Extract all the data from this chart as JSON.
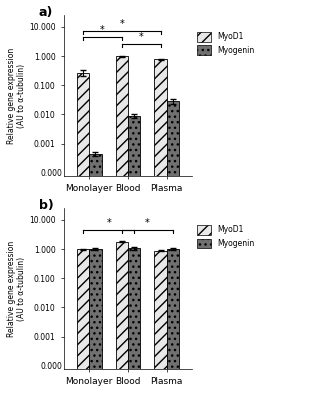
{
  "panel_a": {
    "categories": [
      "Monolayer",
      "Blood",
      "Plasma"
    ],
    "myod1_values": [
      0.27,
      1.0,
      0.78
    ],
    "myod1_errors": [
      0.07,
      0.04,
      0.04
    ],
    "myogenin_values": [
      0.00045,
      0.009,
      0.028
    ],
    "myogenin_errors": [
      7e-05,
      0.0013,
      0.005
    ],
    "significance_lines": [
      {
        "x1_bar": "blood_myod1",
        "x2_bar": "plasma_myod1",
        "y_data": 2.5,
        "label": "*"
      },
      {
        "x1_bar": "monolayer_myod1",
        "x2_bar": "blood_myod1",
        "y_data": 4.5,
        "label": "*"
      },
      {
        "x1_bar": "monolayer_myod1",
        "x2_bar": "plasma_myod1",
        "y_data": 7.0,
        "label": "*"
      }
    ]
  },
  "panel_b": {
    "categories": [
      "Monolayer",
      "Blood",
      "Plasma"
    ],
    "myod1_values": [
      1.0,
      1.75,
      0.88
    ],
    "myod1_errors": [
      0.04,
      0.07,
      0.04
    ],
    "myogenin_values": [
      1.0,
      1.05,
      1.0
    ],
    "myogenin_errors": [
      0.06,
      0.09,
      0.08
    ],
    "significance_lines": [
      {
        "x1_bar": "monolayer_myod1",
        "x2_bar": "blood_myogenin",
        "y_data": 4.5,
        "label": "*"
      },
      {
        "x1_bar": "blood_myod1",
        "x2_bar": "plasma_myogenin",
        "y_data": 4.5,
        "label": "*"
      }
    ]
  },
  "ylabel": "Relative gene expression\n(AU to α-tubulin)",
  "ylim": [
    8e-05,
    25.0
  ],
  "yticks": [
    0.001,
    0.01,
    0.1,
    1.0,
    10.0
  ],
  "ytick_labels": [
    "0.001",
    "0.010",
    "0.100",
    "1.000",
    "10.000"
  ],
  "bar_width": 0.32,
  "myod1_facecolor": "#e8e8e8",
  "myod1_hatch": "///",
  "myogenin_facecolor": "#707070",
  "myogenin_hatch": "...",
  "legend_myod1": "MyoD1",
  "legend_myogenin": "Myogenin",
  "panel_a_label": "a)",
  "panel_b_label": "b)",
  "bg_color": "#ffffff"
}
